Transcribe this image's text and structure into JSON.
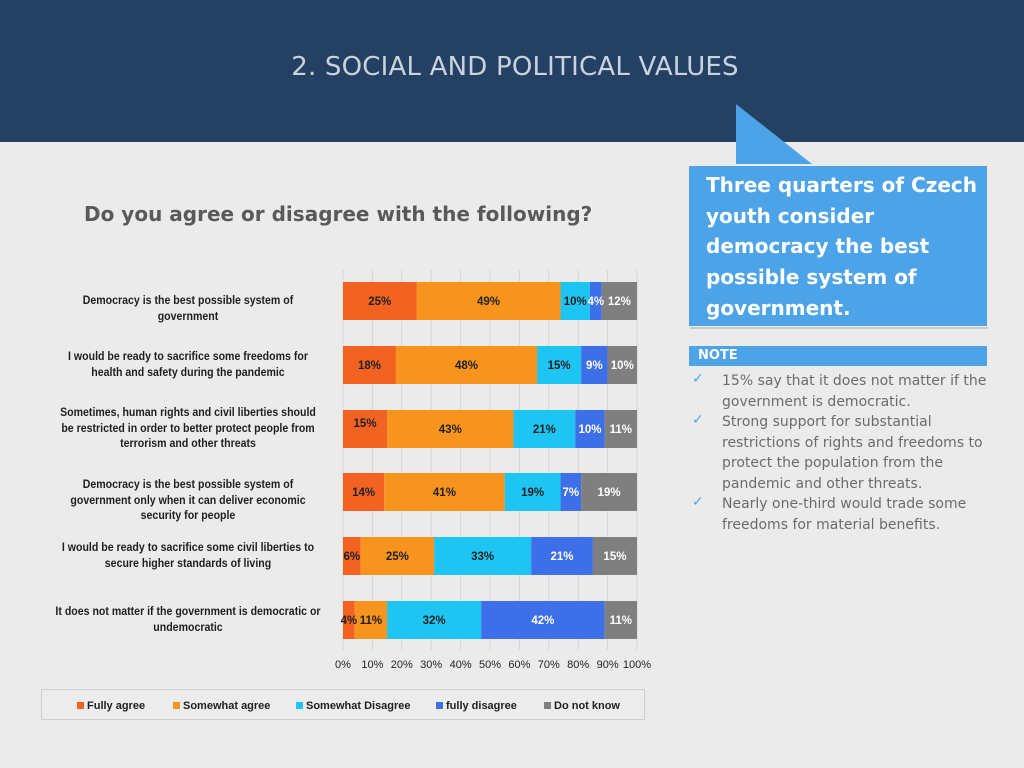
{
  "header": {
    "title": "2. SOCIAL AND POLITICAL VALUES"
  },
  "callout": {
    "text": "Three quarters of Czech youth consider democracy the best possible system of government."
  },
  "note": {
    "title": "NOTE",
    "items": [
      "15% say that it does not matter if the government is democratic.",
      "Strong support for substantial restrictions of rights and freedoms to protect the population from the pandemic and other threats.",
      "Nearly one-third would trade some freedoms for material benefits."
    ]
  },
  "colors": {
    "fully_agree": "#f26322",
    "somewhat_agree": "#f7941d",
    "somewhat_disagree": "#1ec5f2",
    "fully_disagree": "#3d6fe8",
    "dont_know": "#7f7f7f",
    "header_bg": "#244163",
    "callout_bg": "#4da3e8"
  },
  "chart_data": {
    "type": "bar",
    "orientation": "horizontal",
    "stacked": true,
    "title": "Do you agree or disagree with the following?",
    "categories": [
      "Democracy is the best possible system of government",
      "I would be ready to sacrifice some freedoms for health and safety during the pandemic",
      "Sometimes, human rights and civil liberties should be restricted in order to better protect people from terrorism and other threats",
      "Democracy is the best possible system of government only when it can deliver economic security for people",
      "I would be ready to sacrifice some civil liberties  to secure higher standards of living",
      "It does not matter if the government is democratic or undemocratic"
    ],
    "series": [
      {
        "name": "Fully agree",
        "values": [
          25,
          18,
          15,
          14,
          6,
          4
        ],
        "labels": [
          "25%",
          "18%",
          "15%",
          "14%",
          "6%",
          "4%"
        ]
      },
      {
        "name": "Somewhat agree",
        "values": [
          49,
          48,
          43,
          41,
          25,
          11
        ],
        "labels": [
          "49%",
          "48%",
          "43%",
          "41%",
          "25%",
          "11%"
        ]
      },
      {
        "name": "Somewhat Disagree",
        "values": [
          10,
          15,
          21,
          19,
          33,
          32
        ],
        "labels": [
          "10%",
          "15%",
          "21%",
          "19%",
          "33%",
          "32%"
        ]
      },
      {
        "name": "fully disagree",
        "values": [
          4,
          9,
          10,
          7,
          21,
          42
        ],
        "labels": [
          "4%",
          "9%",
          "10%",
          "7%",
          "21%",
          "42%"
        ]
      },
      {
        "name": "Do not know",
        "values": [
          12,
          10,
          11,
          19,
          15,
          11
        ],
        "labels": [
          "12%",
          "10%",
          "11%",
          "19%",
          "15%",
          "11%"
        ]
      }
    ],
    "xlim": [
      0,
      100
    ],
    "x_ticks": [
      "0%",
      "10%",
      "20%",
      "30%",
      "40%",
      "50%",
      "60%",
      "70%",
      "80%",
      "90%",
      "100%"
    ],
    "grid": true,
    "legend": "bottom"
  }
}
